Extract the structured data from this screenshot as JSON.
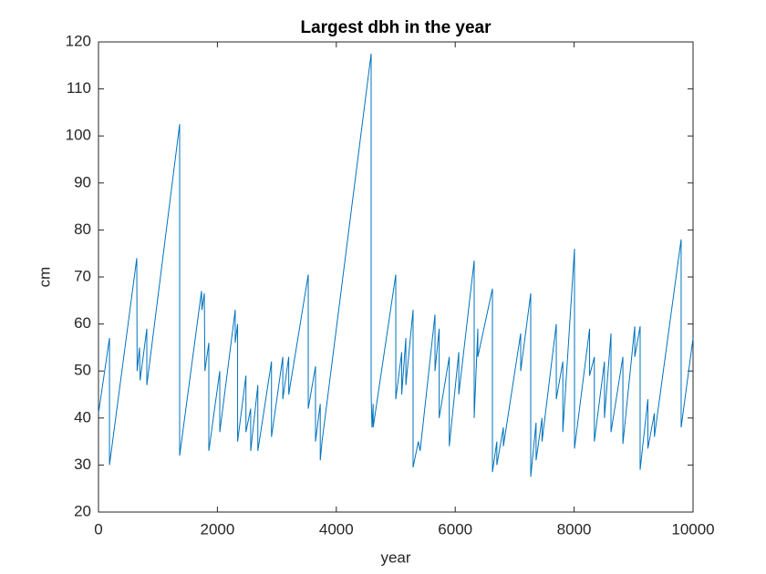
{
  "chart_data": {
    "type": "line",
    "title": "Largest dbh in the year",
    "xlabel": "year",
    "ylabel": "cm",
    "xlim": [
      0,
      10000
    ],
    "xticks": [
      0,
      2000,
      4000,
      6000,
      8000,
      10000
    ],
    "ylim": [
      20,
      120
    ],
    "yticks": [
      20,
      30,
      40,
      50,
      60,
      70,
      80,
      90,
      100,
      110,
      120
    ],
    "series": [
      {
        "color": "#0072bd",
        "x": [
          0,
          185,
          185,
          644,
          650,
          690,
          700,
          813,
          813,
          1365,
          1365,
          1733,
          1740,
          1780,
          1790,
          1856,
          1856,
          2040,
          2040,
          2300,
          2300,
          2340,
          2340,
          2480,
          2480,
          2560,
          2560,
          2680,
          2680,
          2910,
          2910,
          3100,
          3100,
          3200,
          3200,
          3528,
          3528,
          3650,
          3650,
          3730,
          3730,
          3760,
          4586,
          4586,
          4600,
          4620,
          4620,
          5000,
          5000,
          5100,
          5100,
          5170,
          5170,
          5291,
          5291,
          5380,
          5410,
          5660,
          5660,
          5730,
          5730,
          5900,
          5900,
          6060,
          6060,
          6319,
          6319,
          6380,
          6380,
          6626,
          6626,
          6700,
          6700,
          6810,
          6810,
          7101,
          7101,
          7270,
          7270,
          7360,
          7360,
          7460,
          7460,
          7700,
          7700,
          7810,
          7810,
          8006,
          8006,
          8260,
          8260,
          8340,
          8340,
          8510,
          8510,
          8620,
          8620,
          8820,
          8820,
          9020,
          9020,
          9110,
          9110,
          9240,
          9240,
          9350,
          9350,
          9800,
          9800,
          10000
        ],
        "values": [
          41,
          57,
          30,
          74,
          50,
          55,
          48,
          59,
          47,
          102.5,
          32,
          67,
          63,
          66.5,
          50,
          56,
          33,
          50,
          37,
          63,
          56,
          60,
          35,
          49,
          37,
          42,
          33,
          47,
          33,
          52,
          36,
          53,
          44,
          53,
          45,
          70.5,
          42,
          51,
          35,
          43,
          31,
          35,
          117.5,
          45,
          38,
          43,
          38,
          70.5,
          44,
          54,
          45,
          57,
          47,
          63,
          29.5,
          35,
          33,
          62,
          50,
          59,
          40,
          53,
          34,
          54,
          45,
          73.5,
          40,
          59,
          53,
          67.5,
          28.5,
          35,
          30,
          38,
          34,
          58,
          50,
          66.5,
          27.5,
          39,
          31,
          40,
          35,
          60,
          44,
          52,
          37,
          76,
          33.5,
          59,
          49,
          53,
          35,
          52,
          40,
          58,
          37,
          53,
          34.5,
          59.5,
          53,
          59.5,
          29,
          44,
          33.5,
          41,
          36,
          78,
          38,
          57
        ]
      }
    ]
  }
}
